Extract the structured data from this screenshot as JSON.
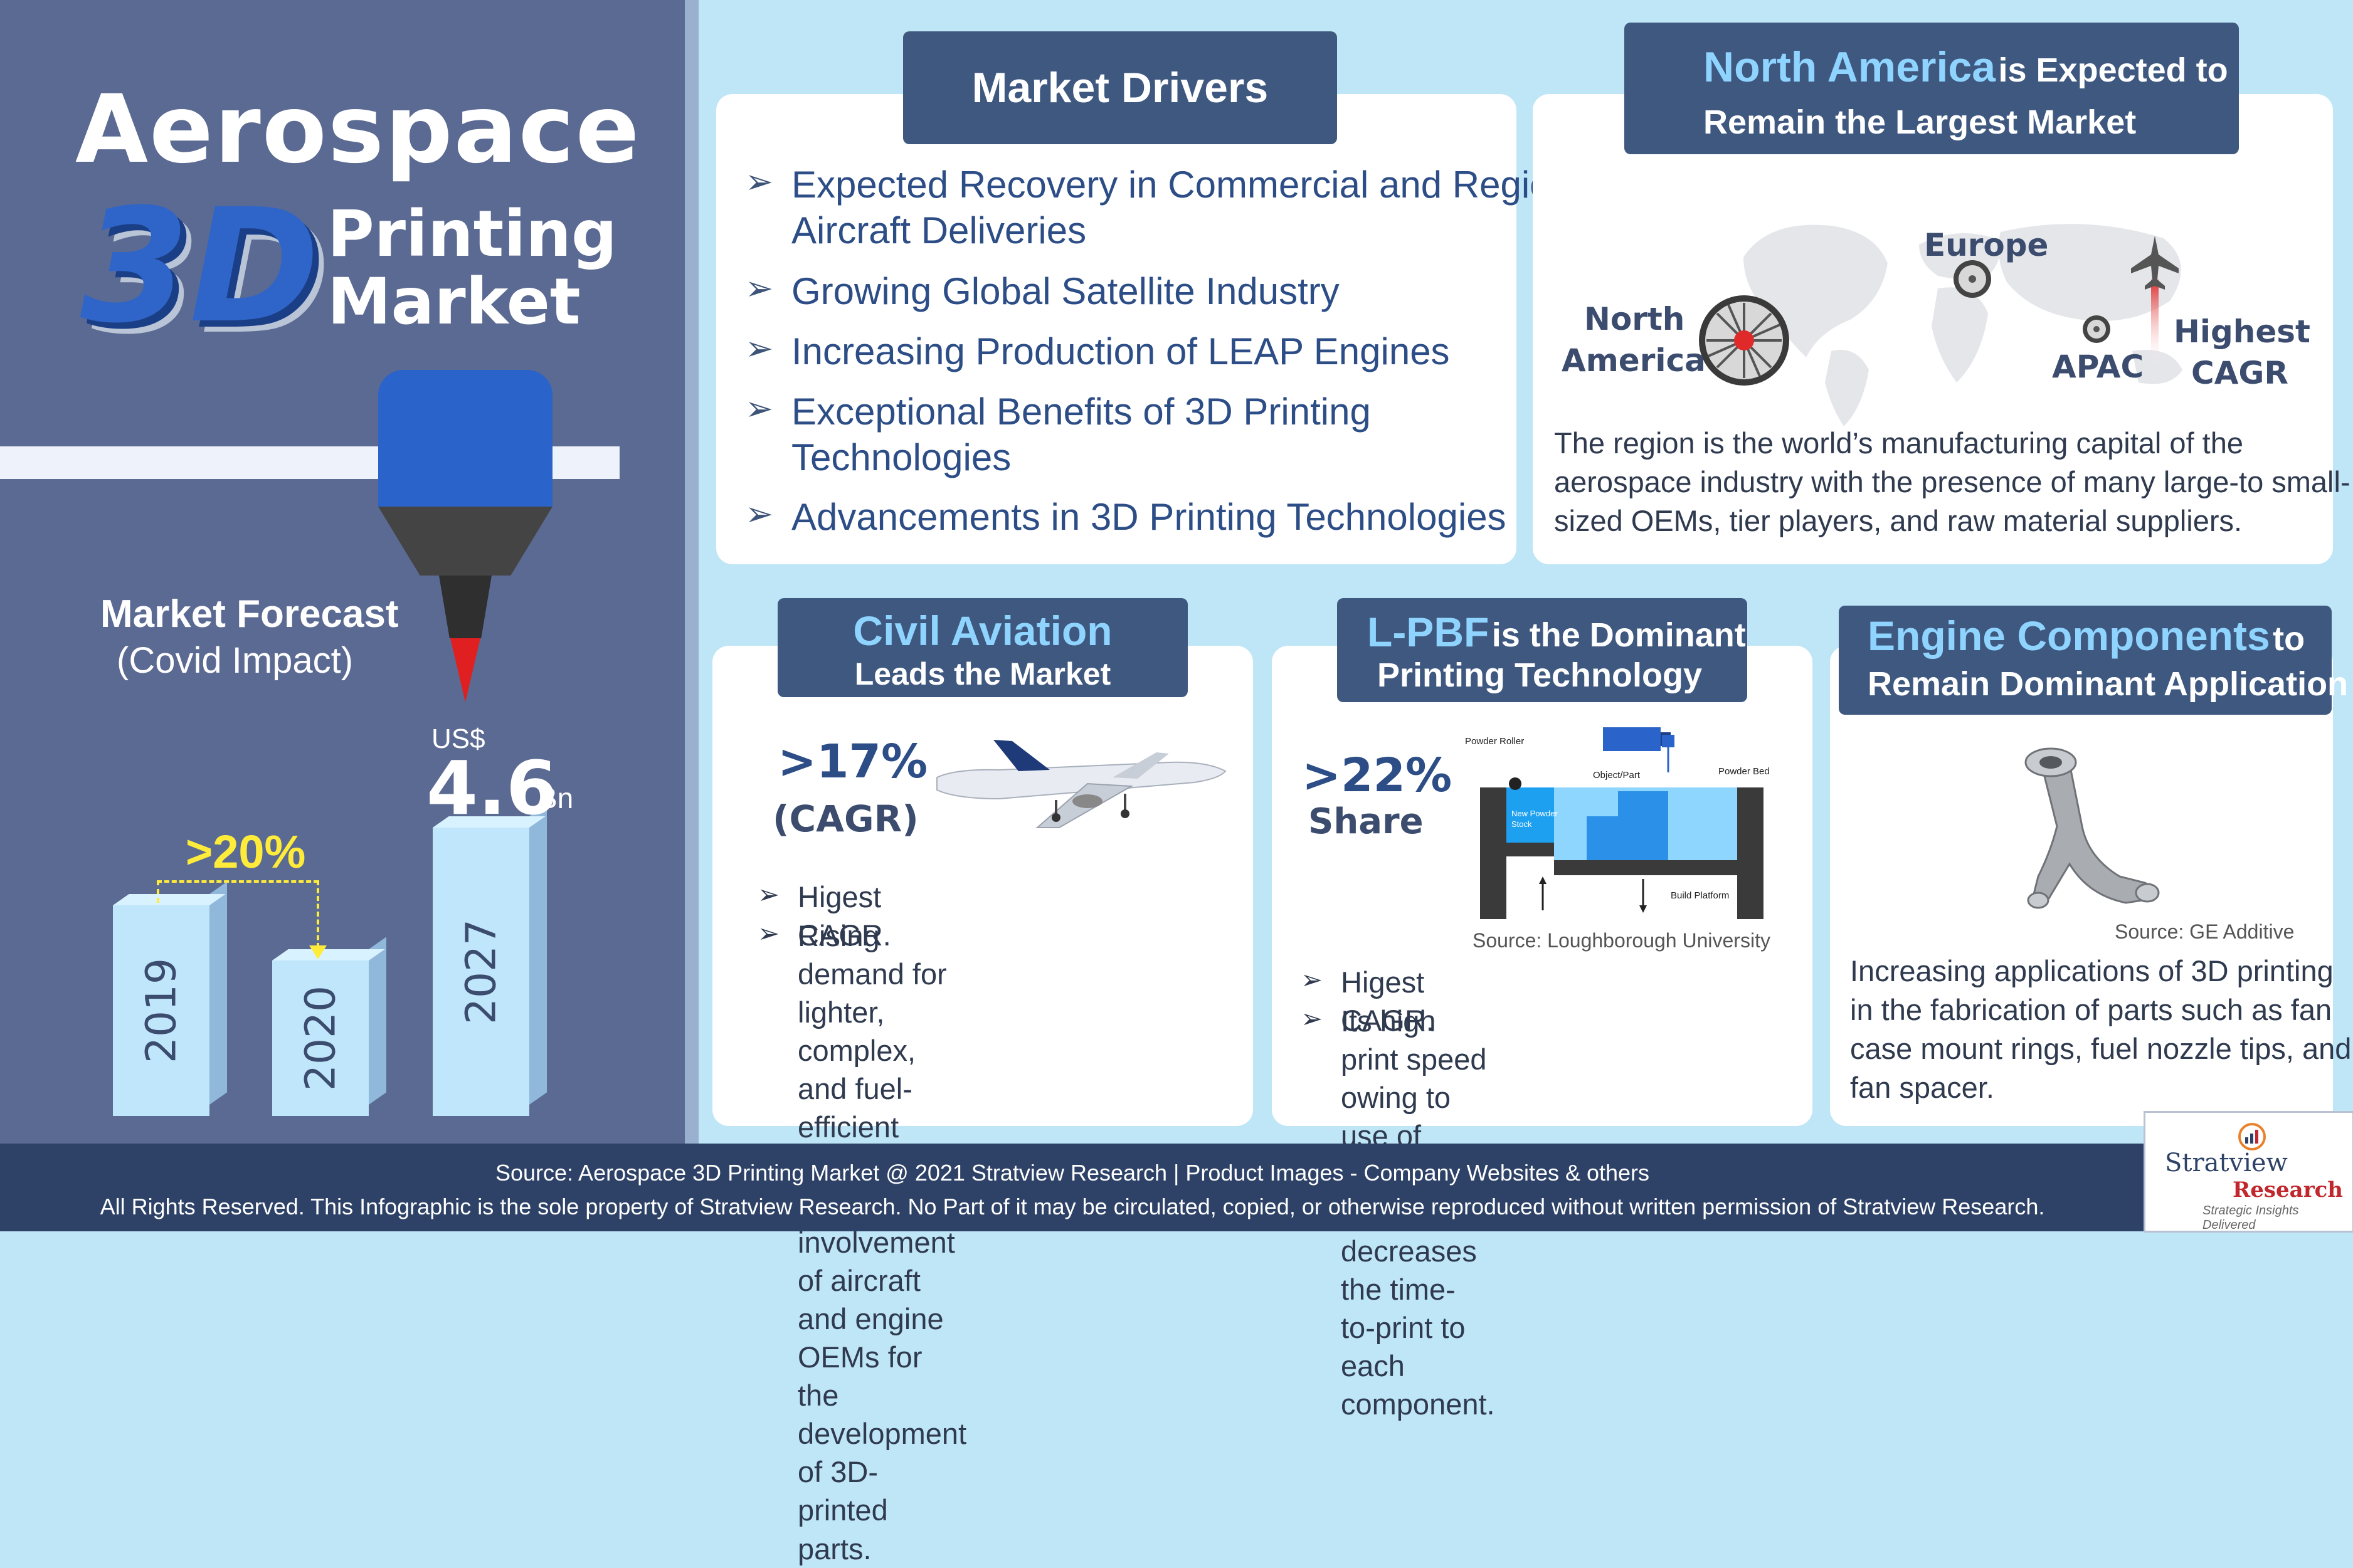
{
  "hero": {
    "title_line1": "Aerospace",
    "title_3d": "3D",
    "title_line2": "Printing",
    "title_line3": "Market"
  },
  "forecast": {
    "title": "Market Forecast",
    "subtitle": "(Covid Impact)",
    "decline_label": ">20%",
    "currency": "US$",
    "value": "4.6",
    "unit": "Bn",
    "bars": [
      {
        "year": "2019"
      },
      {
        "year": "2020"
      },
      {
        "year": "2027"
      }
    ]
  },
  "drivers": {
    "header": "Market Drivers",
    "items": [
      {
        "line1": "Expected Recovery in Commercial and Regional",
        "line2": "Aircraft Deliveries"
      },
      {
        "line1": "Growing Global Satellite Industry",
        "line2": ""
      },
      {
        "line1": "Increasing Production of LEAP Engines",
        "line2": ""
      },
      {
        "line1": "Exceptional Benefits of 3D Printing",
        "line2": "Technologies"
      },
      {
        "line1": "Advancements in 3D Printing Technologies",
        "line2": ""
      }
    ]
  },
  "region": {
    "header_em": "North America",
    "header_rest": "is Expected to",
    "header_line2": "Remain the Largest Market",
    "labels": {
      "north": "North",
      "america": "America",
      "europe": "Europe",
      "apac": "APAC",
      "highest": "Highest",
      "cagr": "CAGR"
    },
    "body": [
      "The region is the world’s manufacturing capital of the",
      "aerospace industry with the presence of many large-to small-",
      "sized OEMs, tier players, and raw material suppliers."
    ]
  },
  "civil": {
    "header_line1": "Civil Aviation",
    "header_line2": "Leads the Market",
    "stat": ">17%",
    "stat_label": "(CAGR)",
    "bullets": [
      [
        "Higest CAGR."
      ],
      [
        "Rising demand for lighter,",
        "complex, and fuel-efficient parts,",
        "and high involvement of aircraft",
        "and engine OEMs for the",
        "development of 3D-printed parts."
      ]
    ]
  },
  "lpbf": {
    "header_em": "L-PBF",
    "header_rest": "is the Dominant",
    "header_line2": "Printing Technology",
    "stat": ">22%",
    "stat_label": "Share",
    "diagram": {
      "powder_roller": "Powder Roller",
      "laser": "Laser",
      "object": "Object/Part",
      "powder_bed": "Powder Bed",
      "new_powder": "New Powder",
      "stock": "Stock",
      "build_platform": "Build Platform"
    },
    "source": "Source: Loughborough University",
    "bullets": [
      [
        "Higest CAGR."
      ],
      [
        "Its high print speed owing to use of",
        "multiple lasers decreases the time-",
        "to-print to each component."
      ]
    ]
  },
  "engine": {
    "header_em": "Engine Components",
    "header_rest": "to",
    "header_line2": "Remain Dominant Application",
    "source": "Source: GE Additive",
    "body": [
      "Increasing applications of 3D printing",
      "in the fabrication of parts such as fan",
      "case mount rings, fuel nozzle tips, and",
      "fan spacer."
    ]
  },
  "footer": {
    "line1": "Source: Aerospace 3D Printing Market @ 2021 Stratview Research  |  Product Images  - Company Websites & others",
    "line2": "All Rights Reserved. This Infographic is the sole property of Stratview Research. No Part of it may be circulated, copied, or otherwise reproduced without written permission of Stratview Research."
  },
  "logo": {
    "name": "Stratview",
    "name2": "Research",
    "tagline": "Strategic Insights Delivered"
  },
  "colors": {
    "navy": "#2e4267",
    "blue_text": "#2c4d86",
    "accent_yellow": "#ffec3a",
    "bg_light": "#bfe6f7"
  }
}
